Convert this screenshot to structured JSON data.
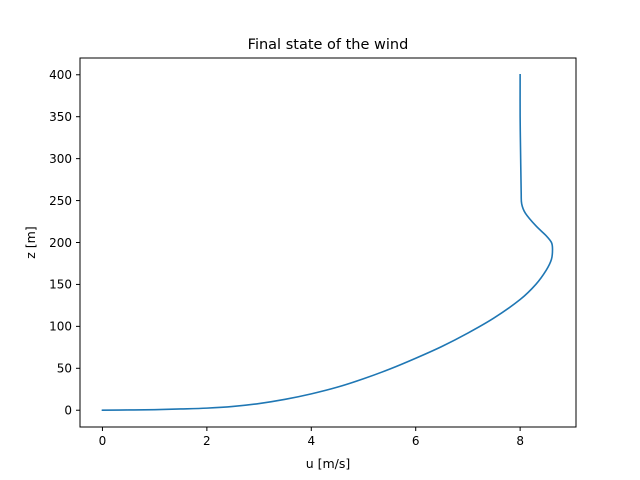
{
  "chart_data": {
    "type": "line",
    "title": "Final state of the wind",
    "xlabel": "u [m/s]",
    "ylabel": "z [m]",
    "xlim": [
      -0.43,
      9.07
    ],
    "ylim": [
      -20,
      420
    ],
    "xticks": [
      0,
      2,
      4,
      6,
      8
    ],
    "yticks": [
      0,
      50,
      100,
      150,
      200,
      250,
      300,
      350,
      400
    ],
    "xtick_labels": [
      "0",
      "2",
      "4",
      "6",
      "8"
    ],
    "ytick_labels": [
      "0",
      "50",
      "100",
      "150",
      "200",
      "250",
      "300",
      "350",
      "400"
    ],
    "grid": false,
    "legend": "none",
    "series": [
      {
        "color": "#1f77b4",
        "x": [
          0.0,
          0.5,
          1.0,
          1.5,
          2.0,
          2.5,
          3.0,
          3.5,
          4.0,
          4.5,
          5.0,
          5.5,
          6.0,
          6.5,
          7.0,
          7.5,
          8.0,
          8.3,
          8.5,
          8.6,
          8.62,
          8.6,
          8.5,
          8.3,
          8.1,
          8.03,
          8.02,
          8.01,
          8.0,
          8.0
        ],
        "y": [
          0,
          0.3,
          0.7,
          1.5,
          2.5,
          4.5,
          8,
          13,
          19.5,
          27.5,
          37.5,
          49,
          62,
          76,
          92,
          110,
          132,
          150,
          167,
          180,
          192,
          200,
          208,
          220,
          235,
          246,
          260,
          300,
          350,
          400
        ]
      }
    ]
  }
}
